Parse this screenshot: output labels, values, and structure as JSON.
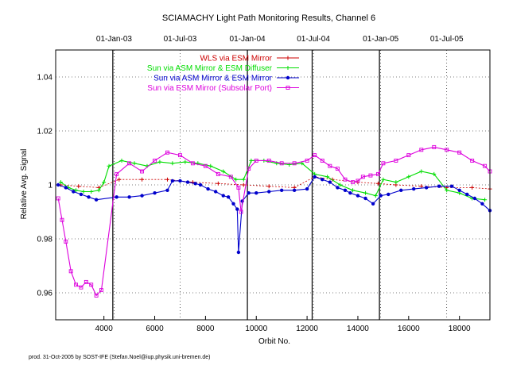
{
  "chart_data": {
    "type": "scatter",
    "title": "SCIAMACHY Light Path Monitoring Results, Channel 6",
    "xlabel": "Orbit No.",
    "ylabel": "Relative Avg. Signal",
    "xlim": [
      2100,
      19200
    ],
    "ylim": [
      0.95,
      1.05
    ],
    "x_ticks": [
      4000,
      6000,
      8000,
      10000,
      12000,
      14000,
      16000,
      18000
    ],
    "y_ticks": [
      0.96,
      0.98,
      1,
      1.02,
      1.04
    ],
    "y_tick_labels": [
      "0.96",
      "0.98",
      "1",
      "1.02",
      "1.04"
    ],
    "top_axis": [
      {
        "label": "01-Jan-03",
        "orbit": 4400
      },
      {
        "label": "01-Jul-03",
        "orbit": 7000
      },
      {
        "label": "01-Jan-04",
        "orbit": 9650
      },
      {
        "label": "01-Jul-04",
        "orbit": 12250
      },
      {
        "label": "01-Jan-05",
        "orbit": 14900
      },
      {
        "label": "01-Jul-05",
        "orbit": 17500
      }
    ],
    "gaps": [
      4350,
      9650,
      12200,
      14850
    ],
    "grid": true,
    "legend_position": "top-right",
    "series": [
      {
        "name": "WLS via ESM Mirror",
        "color": "#cc0000",
        "marker": "plus",
        "x": [
          2300,
          3000,
          3800,
          4600,
          5500,
          6500,
          7500,
          8500,
          9500,
          10500,
          11500,
          12300,
          13000,
          14000,
          14800,
          15500,
          16500,
          17500,
          18500,
          19200
        ],
        "y": [
          1.0,
          0.9995,
          0.999,
          1.002,
          1.002,
          1.002,
          1.001,
          1.0005,
          1.0,
          0.9995,
          0.999,
          1.003,
          1.002,
          1.001,
          1.0005,
          1.0,
          0.9995,
          0.999,
          0.999,
          0.9985
        ]
      },
      {
        "name": "Sun via ASM Mirror & ESM Diffuser",
        "color": "#00dd00",
        "marker": "plus",
        "x": [
          2300,
          2600,
          2900,
          3200,
          3500,
          3800,
          4000,
          4200,
          4700,
          5200,
          5700,
          6200,
          6700,
          7200,
          7700,
          8200,
          8700,
          9200,
          9500,
          9800,
          10300,
          10800,
          11300,
          11800,
          12300,
          12800,
          13300,
          13800,
          14300,
          14700,
          15000,
          15500,
          16000,
          16500,
          17000,
          17500,
          18000,
          18500,
          19000
        ],
        "y": [
          1.001,
          0.999,
          0.998,
          0.9975,
          0.9975,
          0.998,
          1.001,
          1.007,
          1.009,
          1.008,
          1.007,
          1.0085,
          1.008,
          1.0085,
          1.008,
          1.007,
          1.005,
          1.002,
          1.002,
          1.009,
          1.009,
          1.008,
          1.0075,
          1.008,
          1.004,
          1.003,
          1.0,
          0.998,
          0.997,
          0.996,
          1.002,
          1.001,
          1.003,
          1.005,
          1.004,
          0.998,
          0.997,
          0.995,
          0.9945
        ]
      },
      {
        "name": "Sun via ASM Mirror & ESM Mirror",
        "color": "#0000cc",
        "marker": "star",
        "x": [
          2200,
          2500,
          2800,
          3100,
          3400,
          3700,
          4500,
          5000,
          5500,
          6000,
          6500,
          6700,
          7000,
          7300,
          7600,
          7800,
          8100,
          8400,
          8700,
          8900,
          9100,
          9250,
          9300,
          9450,
          9700,
          10000,
          10500,
          11000,
          11500,
          12000,
          12300,
          12600,
          12900,
          13200,
          13500,
          13700,
          14000,
          14300,
          14600,
          14900,
          15200,
          15700,
          16200,
          16700,
          17200,
          17700,
          18000,
          18300,
          18600,
          18900,
          19200
        ],
        "y": [
          1.0,
          0.999,
          0.9975,
          0.9965,
          0.9955,
          0.9945,
          0.9955,
          0.9955,
          0.996,
          0.997,
          0.998,
          1.0015,
          1.0015,
          1.001,
          1.0005,
          1.0,
          0.9985,
          0.9975,
          0.996,
          0.9955,
          0.993,
          0.991,
          0.975,
          0.994,
          0.997,
          0.997,
          0.9975,
          0.998,
          0.998,
          0.9985,
          1.003,
          1.002,
          1.001,
          0.999,
          0.998,
          0.997,
          0.996,
          0.995,
          0.993,
          0.996,
          0.9965,
          0.998,
          0.9985,
          0.999,
          0.9995,
          0.9995,
          0.998,
          0.9965,
          0.995,
          0.993,
          0.9905
        ]
      },
      {
        "name": "Sun via ESM Mirror (Subsolar Port)",
        "color": "#dd00dd",
        "marker": "square",
        "x": [
          2200,
          2350,
          2500,
          2700,
          2900,
          3100,
          3300,
          3500,
          3700,
          3900,
          4500,
          5000,
          5500,
          6000,
          6500,
          7000,
          7500,
          8000,
          8500,
          9000,
          9300,
          9400,
          9700,
          10000,
          10500,
          11000,
          11500,
          12000,
          12300,
          12600,
          12900,
          13200,
          13500,
          13800,
          14000,
          14200,
          14500,
          14800,
          15000,
          15500,
          16000,
          16500,
          17000,
          17500,
          18000,
          18500,
          19000,
          19200
        ],
        "y": [
          0.995,
          0.987,
          0.979,
          0.968,
          0.963,
          0.962,
          0.964,
          0.963,
          0.959,
          0.961,
          1.004,
          1.008,
          1.005,
          1.009,
          1.012,
          1.011,
          1.008,
          1.007,
          1.004,
          1.003,
          0.999,
          0.99,
          1.006,
          1.009,
          1.009,
          1.008,
          1.008,
          1.009,
          1.011,
          1.009,
          1.007,
          1.006,
          1.002,
          1.001,
          1.0015,
          1.003,
          1.0035,
          1.004,
          1.008,
          1.009,
          1.011,
          1.013,
          1.014,
          1.013,
          1.012,
          1.009,
          1.007,
          1.005
        ]
      }
    ]
  },
  "credit": "prod. 31-Oct-2005 by SOST-IFE (Stefan.Noel@iup.physik.uni-bremen.de)"
}
